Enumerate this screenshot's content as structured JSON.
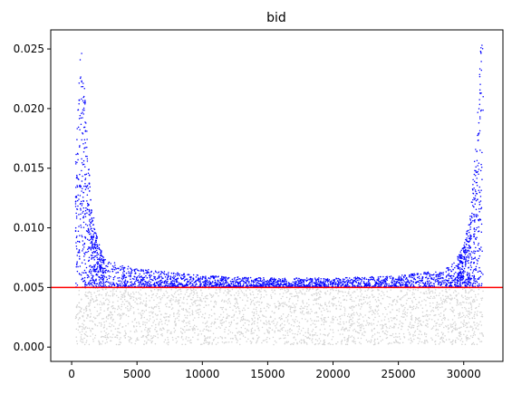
{
  "chart_data": {
    "type": "scatter",
    "title": "bid",
    "xlabel": "",
    "ylabel": "",
    "xlim": [
      -1600,
      33000
    ],
    "ylim": [
      -0.0012,
      0.0266
    ],
    "x_ticks": [
      0,
      5000,
      10000,
      15000,
      20000,
      25000,
      30000
    ],
    "x_tick_labels": [
      "0",
      "5000",
      "10000",
      "15000",
      "20000",
      "25000",
      "30000"
    ],
    "y_ticks": [
      0.0,
      0.005,
      0.01,
      0.015,
      0.02,
      0.025
    ],
    "y_tick_labels": [
      "0.000",
      "0.005",
      "0.010",
      "0.015",
      "0.020",
      "0.025"
    ],
    "grid": false,
    "legend": "none",
    "threshold": {
      "y": 0.005,
      "color": "#ff0000"
    },
    "series": [
      {
        "color": "#0000ff",
        "x_range": [
          300,
          31500
        ],
        "envelope": {
          "x": [
            300,
            700,
            1000,
            1500,
            2000,
            2500,
            3000,
            5000,
            10000,
            15000,
            20000,
            25000,
            28000,
            29000,
            29500,
            30000,
            30500,
            31000,
            31300
          ],
          "y_max": [
            0.0155,
            0.0255,
            0.0215,
            0.012,
            0.009,
            0.0075,
            0.0072,
            0.0066,
            0.006,
            0.0058,
            0.0058,
            0.006,
            0.0064,
            0.0068,
            0.0075,
            0.0085,
            0.011,
            0.018,
            0.0255
          ]
        },
        "y_min": 0.005
      },
      {
        "color": "#d3d3d3",
        "x_range": [
          300,
          31500
        ],
        "y_range": [
          0.0002,
          0.005
        ]
      }
    ]
  }
}
